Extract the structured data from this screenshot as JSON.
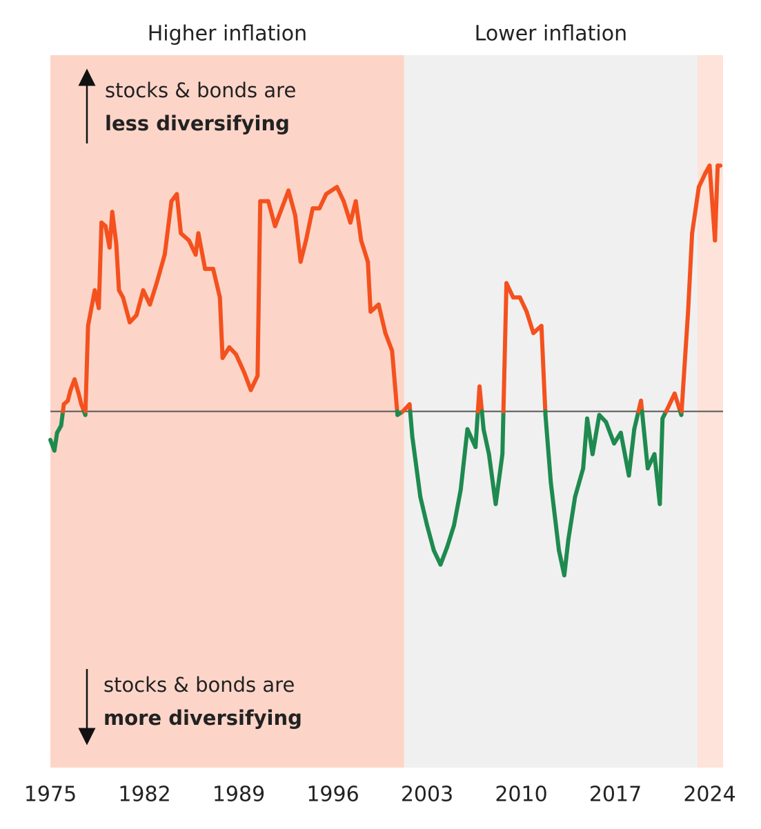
{
  "chart_data": {
    "type": "line",
    "regions": [
      {
        "label": "Higher inflation",
        "start": 1975,
        "end": 2001.3,
        "color": "#fdd5c8"
      },
      {
        "label": "Lower inflation",
        "start": 2001.3,
        "end": 2023.1,
        "color": "#f0f0f0"
      },
      {
        "start": 2023.1,
        "end": 2025,
        "color": "#fde3da"
      }
    ],
    "annotations": [
      {
        "lines": [
          "stocks & bonds are",
          "less diversifying"
        ],
        "direction": "up"
      },
      {
        "lines": [
          "stocks & bonds are",
          "more diversifying"
        ],
        "direction": "down"
      }
    ],
    "x": [
      1975.0,
      1975.3,
      1975.5,
      1975.8,
      1976.0,
      1976.3,
      1976.5,
      1976.8,
      1977.1,
      1977.3,
      1977.6,
      1977.8,
      1978.1,
      1978.3,
      1978.6,
      1978.8,
      1979.1,
      1979.4,
      1979.6,
      1979.9,
      1980.1,
      1980.4,
      1980.9,
      1981.4,
      1981.9,
      1982.4,
      1982.9,
      1983.5,
      1984.0,
      1984.4,
      1984.7,
      1985.3,
      1985.8,
      1986.0,
      1986.5,
      1987.1,
      1987.6,
      1987.8,
      1988.3,
      1988.8,
      1989.4,
      1989.9,
      1990.4,
      1990.6,
      1991.2,
      1991.7,
      1992.2,
      1992.7,
      1993.2,
      1993.6,
      1994.0,
      1994.5,
      1995.0,
      1995.5,
      1996.3,
      1996.8,
      1997.3,
      1997.7,
      1998.1,
      1998.6,
      1998.8,
      1999.4,
      1999.9,
      2000.4,
      2000.8,
      2001.2,
      2001.7,
      2001.9,
      2002.5,
      2003.0,
      2003.5,
      2004.0,
      2004.5,
      2005.0,
      2005.5,
      2006.0,
      2006.6,
      2006.9,
      2007.2,
      2007.6,
      2008.1,
      2008.6,
      2008.9,
      2009.4,
      2009.9,
      2010.4,
      2010.9,
      2011.5,
      2011.8,
      2012.2,
      2012.8,
      2013.2,
      2013.5,
      2014.0,
      2014.6,
      2014.9,
      2015.3,
      2015.8,
      2016.3,
      2016.9,
      2017.4,
      2018.0,
      2018.4,
      2018.9,
      2019.4,
      2019.9,
      2020.3,
      2020.5,
      2020.9,
      2021.4,
      2021.9,
      2022.4,
      2022.7,
      2023.2,
      2023.7,
      2024.0,
      2024.4,
      2024.6,
      2024.8
    ],
    "values": [
      -0.08,
      -0.11,
      -0.06,
      -0.04,
      0.02,
      0.03,
      0.06,
      0.09,
      0.05,
      0.02,
      -0.01,
      0.24,
      0.3,
      0.34,
      0.29,
      0.53,
      0.52,
      0.46,
      0.56,
      0.47,
      0.34,
      0.32,
      0.25,
      0.27,
      0.34,
      0.3,
      0.36,
      0.44,
      0.59,
      0.61,
      0.5,
      0.48,
      0.44,
      0.5,
      0.4,
      0.4,
      0.32,
      0.15,
      0.18,
      0.16,
      0.11,
      0.06,
      0.1,
      0.59,
      0.59,
      0.52,
      0.57,
      0.62,
      0.55,
      0.42,
      0.48,
      0.57,
      0.57,
      0.61,
      0.63,
      0.59,
      0.53,
      0.59,
      0.48,
      0.42,
      0.28,
      0.3,
      0.22,
      0.17,
      -0.01,
      0.0,
      0.02,
      -0.07,
      -0.24,
      -0.32,
      -0.39,
      -0.43,
      -0.38,
      -0.32,
      -0.22,
      -0.05,
      -0.1,
      0.07,
      -0.05,
      -0.12,
      -0.26,
      -0.12,
      0.36,
      0.32,
      0.32,
      0.28,
      0.22,
      0.24,
      -0.01,
      -0.2,
      -0.39,
      -0.46,
      -0.36,
      -0.24,
      -0.16,
      -0.02,
      -0.12,
      -0.01,
      -0.03,
      -0.09,
      -0.06,
      -0.18,
      -0.05,
      0.03,
      -0.16,
      -0.12,
      -0.26,
      -0.02,
      0.01,
      0.05,
      -0.01,
      0.28,
      0.5,
      0.63,
      0.67,
      0.69,
      0.48,
      0.69,
      0.69
    ],
    "positive_color": "#f4511e",
    "negative_color": "#1e8a4f",
    "xlim": [
      1975,
      2025
    ],
    "ylim": [
      -1,
      1
    ],
    "xticks": [
      1975,
      1982,
      1989,
      1996,
      2003,
      2010,
      2017,
      2024
    ]
  }
}
